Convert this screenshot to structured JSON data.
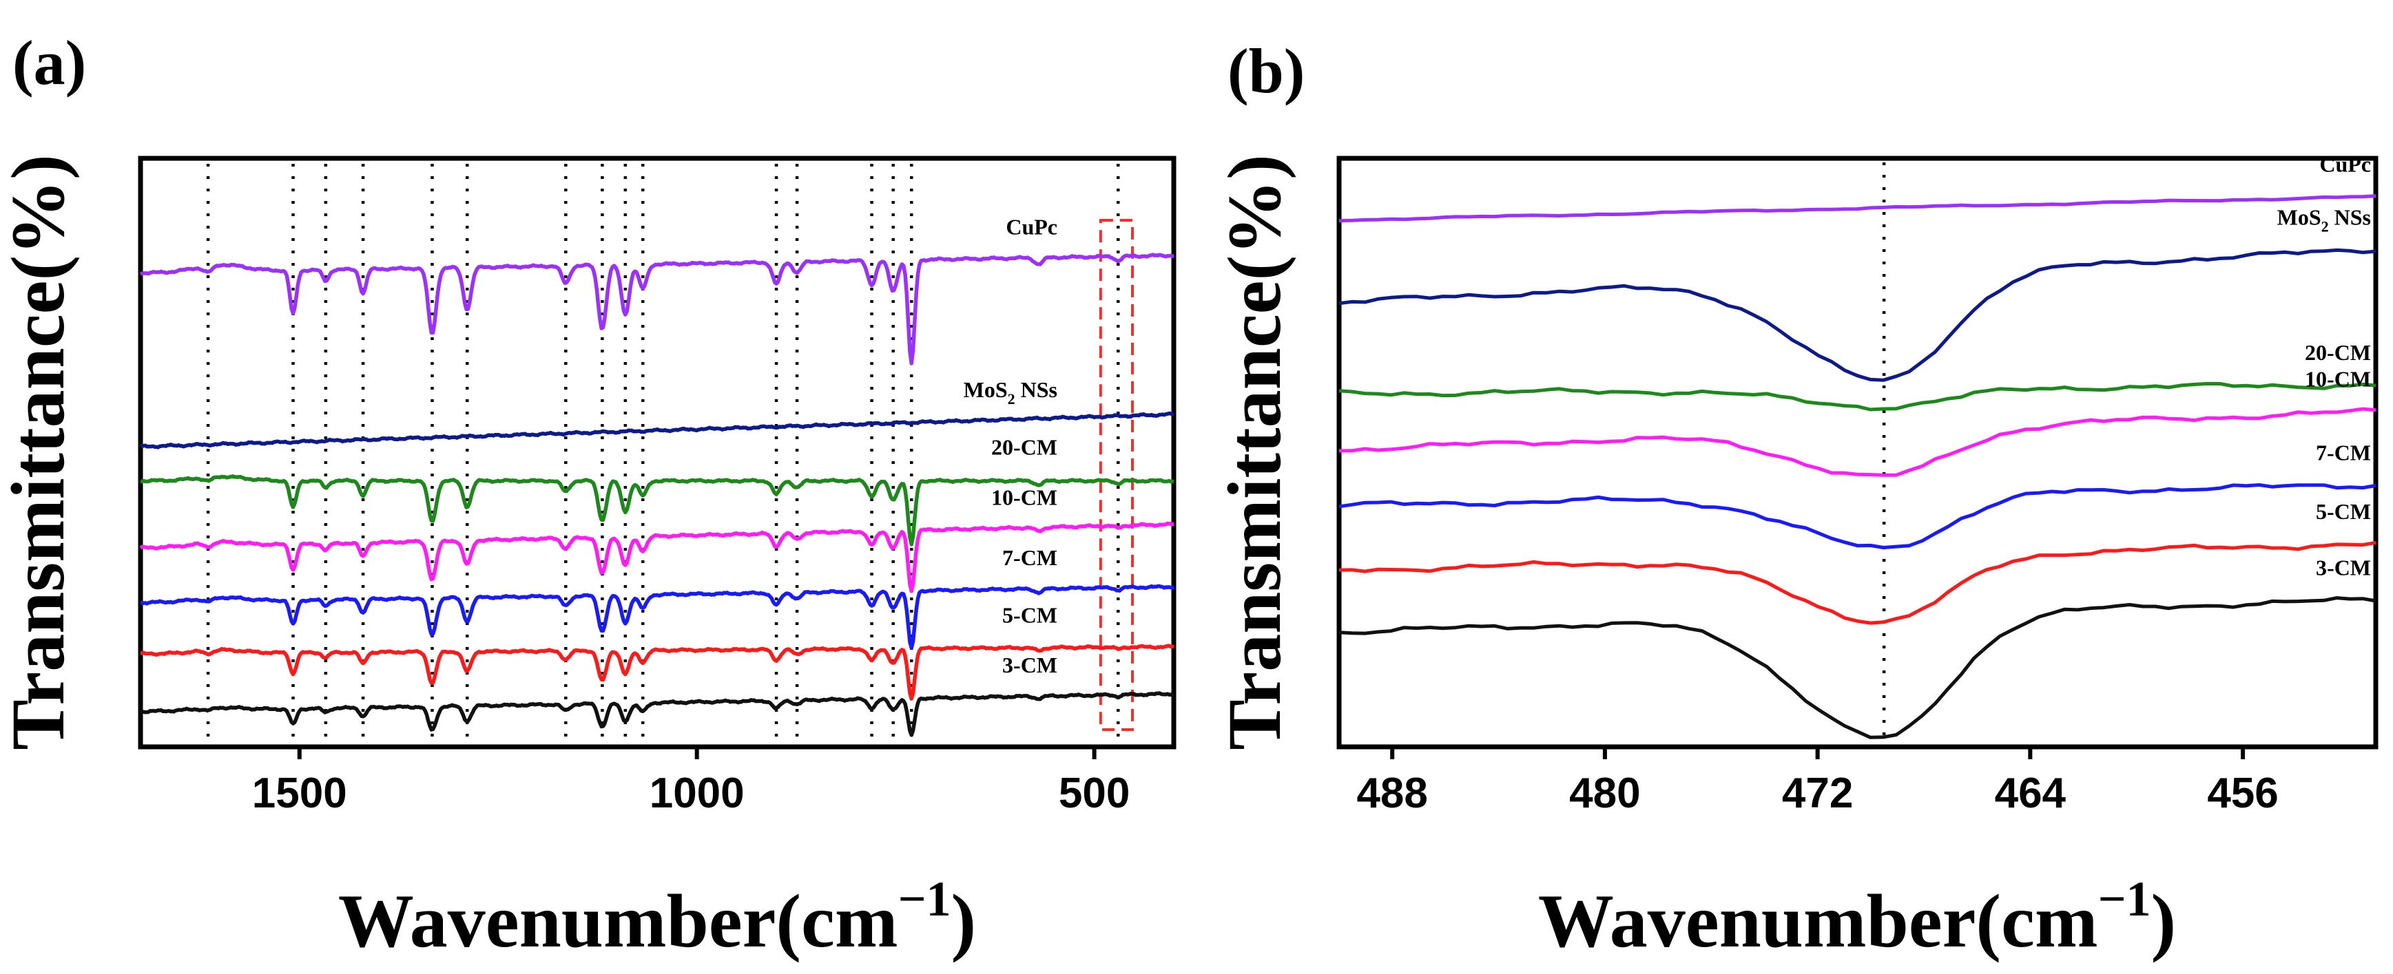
{
  "chart_data": [
    {
      "panel_label": "(a)",
      "type": "line",
      "title": "",
      "xlabel": "Wavenumber(cm",
      "xlabel_exp": "−1",
      "xlabel_close": ")",
      "ylabel": "Transmittance(%)",
      "x_reversed": true,
      "xlim": [
        1700,
        400
      ],
      "xticks": [
        1500,
        1000,
        500
      ],
      "xtick_labels": [
        "1500",
        "1000",
        "500"
      ],
      "y_ticks_shown": false,
      "reference_lines": [
        1615,
        1508,
        1467,
        1420,
        1333,
        1289,
        1165,
        1119,
        1090,
        1068,
        900,
        874,
        780,
        753,
        730,
        470
      ],
      "highlight_box": {
        "x_range": [
          492,
          452
        ],
        "color": "#ff2a2a",
        "style": "dashed"
      },
      "series": [
        {
          "name": "CuPc",
          "label": "CuPc",
          "color": "#9b30ff",
          "baseline": [
            0.195,
            0.165
          ],
          "depth": 1.0
        },
        {
          "name": "MoS2 NSs",
          "label": "MoS",
          "label_sub": "2",
          "label_tail": " NSs",
          "color": "#0d1a8c",
          "baseline": [
            0.49,
            0.435
          ],
          "depth": 0.0,
          "bump470": true
        },
        {
          "name": "20-CM",
          "label": "20-CM",
          "color": "#1b8a1b",
          "baseline": [
            0.548,
            0.548
          ],
          "depth": 0.62
        },
        {
          "name": "10-CM",
          "label": "10-CM",
          "color": "#ff1cf6",
          "baseline": [
            0.662,
            0.622
          ],
          "depth": 0.58
        },
        {
          "name": "7-CM",
          "label": "7-CM",
          "color": "#1a1aff",
          "baseline": [
            0.755,
            0.728
          ],
          "depth": 0.56
        },
        {
          "name": "5-CM",
          "label": "5-CM",
          "color": "#ff1a1a",
          "baseline": [
            0.842,
            0.83
          ],
          "depth": 0.48
        },
        {
          "name": "3-CM",
          "label": "3-CM",
          "color": "#111111",
          "baseline": [
            0.94,
            0.91
          ],
          "depth": 0.36
        }
      ]
    },
    {
      "panel_label": "(b)",
      "type": "line",
      "title": "",
      "xlabel": "Wavenumber(cm",
      "xlabel_exp": "−1",
      "xlabel_close": ")",
      "ylabel": "Transmittance(%)",
      "x_reversed": true,
      "xlim": [
        490,
        451
      ],
      "xticks": [
        488,
        480,
        472,
        464,
        456
      ],
      "xtick_labels": [
        "488",
        "480",
        "472",
        "464",
        "456"
      ],
      "y_ticks_shown": false,
      "reference_lines": [
        469.5
      ],
      "dip_center": 469.5,
      "series": [
        {
          "name": "CuPc",
          "label": "CuPc",
          "color": "#9b30ff",
          "baseline": [
            0.105,
            0.065
          ],
          "depth": 0.0
        },
        {
          "name": "MoS2 NSs",
          "label": "MoS",
          "label_sub": "2",
          "label_tail": " NSs",
          "color": "#0d1a8c",
          "baseline": [
            0.245,
            0.155
          ],
          "depth": 0.18
        },
        {
          "name": "20-CM",
          "label": "20-CM",
          "color": "#1b8a1b",
          "baseline": [
            0.4,
            0.385
          ],
          "depth": 0.03
        },
        {
          "name": "10-CM",
          "label": "10-CM",
          "color": "#ff1cf6",
          "baseline": [
            0.495,
            0.43
          ],
          "depth": 0.08
        },
        {
          "name": "7-CM",
          "label": "7-CM",
          "color": "#1a1aff",
          "baseline": [
            0.59,
            0.555
          ],
          "depth": 0.09
        },
        {
          "name": "5-CM",
          "label": "5-CM",
          "color": "#ff1a1a",
          "baseline": [
            0.7,
            0.655
          ],
          "depth": 0.11
        },
        {
          "name": "3-CM",
          "label": "3-CM",
          "color": "#111111",
          "baseline": [
            0.805,
            0.75
          ],
          "depth": 0.21
        }
      ]
    }
  ]
}
